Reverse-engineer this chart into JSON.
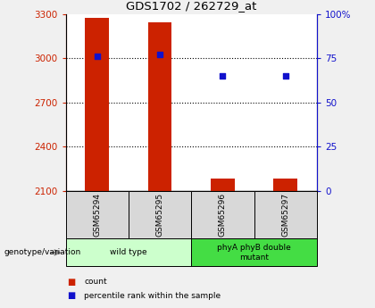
{
  "title": "GDS1702 / 262729_at",
  "samples": [
    "GSM65294",
    "GSM65295",
    "GSM65296",
    "GSM65297"
  ],
  "counts": [
    3270,
    3245,
    2187,
    2187
  ],
  "percentiles": [
    76,
    77,
    65,
    65
  ],
  "ylim_left": [
    2100,
    3300
  ],
  "ylim_right": [
    0,
    100
  ],
  "yticks_left": [
    2100,
    2400,
    2700,
    3000,
    3300
  ],
  "yticks_right": [
    0,
    25,
    50,
    75,
    100
  ],
  "ytick_labels_right": [
    "0",
    "25",
    "50",
    "75",
    "100%"
  ],
  "bar_color": "#CC2200",
  "dot_color": "#1111CC",
  "bar_width": 0.38,
  "groups": [
    {
      "label": "wild type",
      "indices": [
        0,
        1
      ],
      "color": "#ccffcc"
    },
    {
      "label": "phyA phyB double\nmutant",
      "indices": [
        2,
        3
      ],
      "color": "#44dd44"
    }
  ],
  "background_color": "#f0f0f0",
  "plot_bg": "#ffffff",
  "sample_box_color": "#d8d8d8",
  "legend_count_label": "count",
  "legend_pct_label": "percentile rank within the sample",
  "genotype_label": "genotype/variation"
}
